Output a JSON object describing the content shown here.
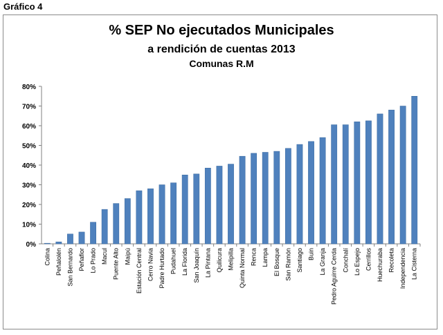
{
  "page": {
    "label": "Gráfico 4"
  },
  "chart_data": {
    "type": "bar",
    "title": "%  SEP  No ejecutados Municipales",
    "subtitle": "a rendición de cuentas 2013",
    "subtitle2": "Comunas R.M",
    "xlabel": "",
    "ylabel": "",
    "ylim": [
      0,
      80
    ],
    "yticks": [
      "0%",
      "10%",
      "20%",
      "30%",
      "40%",
      "50%",
      "60%",
      "70%",
      "80%"
    ],
    "grid": false,
    "bar_color": "#4f81bd",
    "categories": [
      "Colina",
      "Peñalolén",
      "San Bernardo",
      "Peñaflor",
      "Lo Prado",
      "Macul",
      "Puente Alto",
      "Maipú",
      "Estación Central",
      "Cerro Navia",
      "Padre Hurtado",
      "Pudahuel",
      "La Florida",
      "San Joaquín",
      "La Pintana",
      "Quilicura",
      "Melipilla",
      "Quinta Normal",
      "Renca",
      "Lampa",
      "El Bosque",
      "San Ramón",
      "Santiago",
      "Buin",
      "La Granja",
      "Pedro Aguirre Cerda",
      "Conchalí",
      "Lo Espejo",
      "Cerrillos",
      "Huechuraba",
      "Recoleta",
      "Independencia",
      "La Cisterna"
    ],
    "values": [
      0.3,
      1,
      5,
      6,
      11,
      17.5,
      20.5,
      23,
      27,
      28,
      30,
      31,
      35,
      35.5,
      38.5,
      39.5,
      40.5,
      44.5,
      46,
      46.5,
      47,
      48.5,
      50.5,
      52,
      54,
      60.5,
      60.5,
      62,
      62.5,
      66,
      68,
      70,
      75
    ]
  }
}
